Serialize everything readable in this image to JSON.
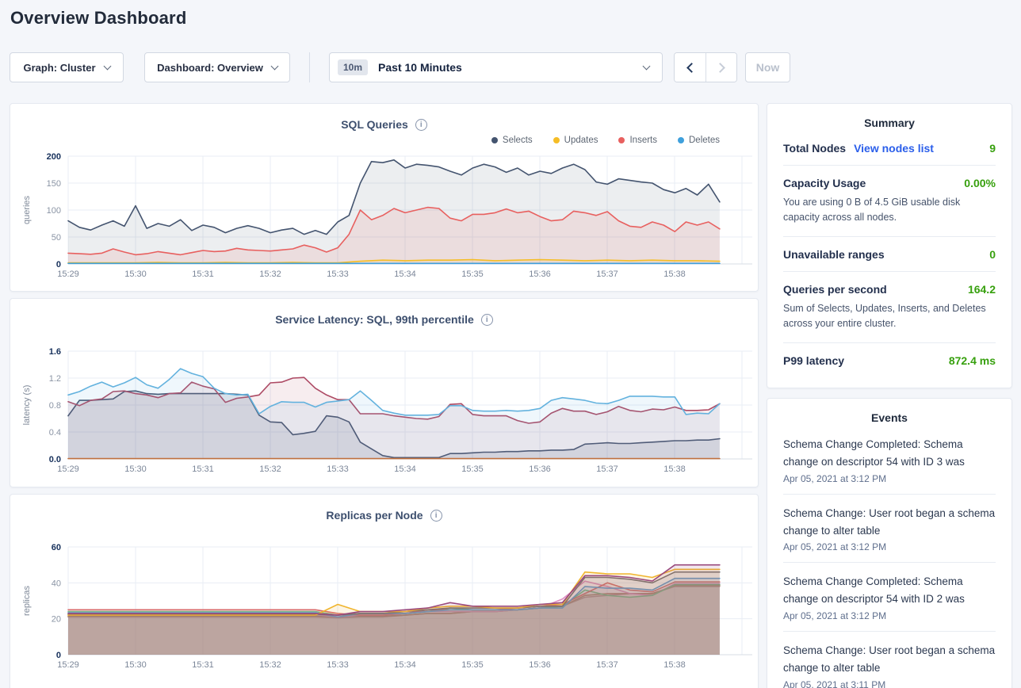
{
  "page": {
    "title": "Overview Dashboard"
  },
  "toolbar": {
    "graph_dropdown": "Graph: Cluster",
    "dashboard_dropdown": "Dashboard: Overview",
    "time_badge": "10m",
    "time_label": "Past 10 Minutes",
    "now_label": "Now"
  },
  "icons": {
    "info_glyph": "i"
  },
  "summary": {
    "title": "Summary",
    "total_nodes_label": "Total Nodes",
    "total_nodes_link": "View nodes list",
    "total_nodes_value": "9",
    "capacity_label": "Capacity Usage",
    "capacity_value": "0.00%",
    "capacity_sub": "You are using 0 B of 4.5 GiB usable disk capacity across all nodes.",
    "unavailable_label": "Unavailable ranges",
    "unavailable_value": "0",
    "qps_label": "Queries per second",
    "qps_value": "164.2",
    "qps_sub": "Sum of Selects, Updates, Inserts, and Deletes across your entire cluster.",
    "p99_label": "P99 latency",
    "p99_value": "872.4 ms",
    "value_color": "#37a00e",
    "link_color": "#2a5eea"
  },
  "events": {
    "title": "Events",
    "items": [
      {
        "text": "Schema Change Completed: Schema change on descriptor 54 with ID 3 was",
        "time": "Apr 05, 2021 at 3:12 PM"
      },
      {
        "text": "Schema Change: User root began a schema change to alter table",
        "time": "Apr 05, 2021 at 3:12 PM"
      },
      {
        "text": "Schema Change Completed: Schema change on descriptor 54 with ID 2 was",
        "time": "Apr 05, 2021 at 3:12 PM"
      },
      {
        "text": "Schema Change: User root began a schema change to alter table",
        "time": "Apr 05, 2021 at 3:11 PM"
      }
    ]
  },
  "chart_data": [
    {
      "type": "area",
      "title": "SQL Queries",
      "ylabel": "queries",
      "ylim": [
        0,
        200
      ],
      "yticks": [
        0,
        50,
        100,
        150,
        200
      ],
      "ytick_labels": [
        "0",
        "50",
        "100",
        "150",
        "200"
      ],
      "x_tick_labels": [
        "15:29",
        "15:30",
        "15:31",
        "15:32",
        "15:33",
        "15:34",
        "15:35",
        "15:36",
        "15:37",
        "15:38"
      ],
      "x_span_minutes": 10,
      "x_data_end": 9.67,
      "grid": true,
      "legend_position": "top-right",
      "legend": [
        {
          "label": "Selects",
          "color": "#44546f"
        },
        {
          "label": "Updates",
          "color": "#f5bd26"
        },
        {
          "label": "Inserts",
          "color": "#e8605f"
        },
        {
          "label": "Deletes",
          "color": "#3fa0dc"
        }
      ],
      "series": [
        {
          "name": "Selects",
          "color": "#44546f",
          "fill_opacity": 0.1,
          "values": [
            80,
            68,
            63,
            72,
            80,
            70,
            108,
            66,
            75,
            70,
            82,
            62,
            72,
            68,
            58,
            66,
            71,
            66,
            58,
            63,
            66,
            55,
            62,
            55,
            78,
            90,
            150,
            190,
            188,
            193,
            178,
            185,
            183,
            180,
            172,
            165,
            178,
            185,
            180,
            170,
            178,
            165,
            172,
            168,
            178,
            185,
            175,
            152,
            148,
            158,
            155,
            152,
            150,
            138,
            132,
            140,
            128,
            148,
            115
          ]
        },
        {
          "name": "Inserts",
          "color": "#e8605f",
          "fill_opacity": 0.12,
          "values": [
            20,
            19,
            18,
            20,
            28,
            22,
            17,
            19,
            23,
            20,
            17,
            21,
            25,
            23,
            24,
            29,
            26,
            25,
            24,
            26,
            28,
            35,
            30,
            22,
            30,
            55,
            100,
            82,
            90,
            103,
            95,
            100,
            105,
            103,
            85,
            80,
            92,
            92,
            95,
            102,
            95,
            98,
            88,
            80,
            82,
            98,
            95,
            90,
            97,
            80,
            70,
            68,
            78,
            72,
            60,
            78,
            72,
            78,
            65
          ]
        },
        {
          "name": "Updates",
          "color": "#f5bd26",
          "fill_opacity": 0.1,
          "values": [
            2,
            2,
            2,
            2,
            3,
            2,
            2,
            3,
            2,
            2,
            3,
            2,
            2,
            5,
            7,
            6,
            7,
            7,
            8,
            6,
            7,
            8,
            7,
            6,
            7,
            6,
            7,
            6,
            6,
            5
          ]
        },
        {
          "name": "Deletes",
          "color": "#3fa0dc",
          "fill_opacity": 0.1,
          "values": [
            1,
            1,
            1,
            1,
            1,
            1,
            1,
            1,
            1,
            1
          ]
        }
      ]
    },
    {
      "type": "area",
      "title": "Service Latency: SQL, 99th percentile",
      "ylabel": "latency (s)",
      "ylim": [
        0,
        1.6
      ],
      "yticks": [
        0,
        0.4,
        0.8,
        1.2,
        1.6
      ],
      "ytick_labels": [
        "0.0",
        "0.4",
        "0.8",
        "1.2",
        "1.6"
      ],
      "x_tick_labels": [
        "15:29",
        "15:30",
        "15:31",
        "15:32",
        "15:33",
        "15:34",
        "15:35",
        "15:36",
        "15:37",
        "15:38"
      ],
      "x_span_minutes": 10,
      "x_data_end": 9.67,
      "grid": true,
      "legend": null,
      "series": [
        {
          "name": "series-navy",
          "color": "#44546f",
          "fill_opacity": 0.14,
          "values": [
            0.64,
            0.87,
            0.87,
            0.88,
            0.89,
            1.0,
            1.01,
            0.97,
            0.96,
            0.97,
            0.97,
            0.97,
            0.97,
            0.97,
            0.97,
            0.96,
            0.95,
            0.65,
            0.55,
            0.54,
            0.36,
            0.38,
            0.41,
            0.64,
            0.62,
            0.55,
            0.25,
            0.15,
            0.05,
            0.02,
            0.02,
            0.02,
            0.02,
            0.02,
            0.08,
            0.08,
            0.09,
            0.1,
            0.1,
            0.11,
            0.11,
            0.12,
            0.12,
            0.13,
            0.13,
            0.14,
            0.22,
            0.23,
            0.24,
            0.23,
            0.23,
            0.24,
            0.25,
            0.26,
            0.27,
            0.27,
            0.28,
            0.28,
            0.3
          ]
        },
        {
          "name": "series-maroon",
          "color": "#ad4a64",
          "fill_opacity": 0.1,
          "values": [
            0.85,
            0.79,
            0.87,
            0.89,
            1.0,
            1.01,
            0.97,
            0.95,
            0.91,
            0.97,
            0.98,
            1.14,
            1.08,
            1.04,
            0.84,
            0.9,
            0.92,
            0.95,
            1.13,
            1.14,
            1.2,
            1.21,
            1.05,
            0.95,
            0.88,
            0.88,
            0.67,
            0.67,
            0.67,
            0.64,
            0.62,
            0.6,
            0.59,
            0.63,
            0.81,
            0.82,
            0.66,
            0.64,
            0.64,
            0.64,
            0.57,
            0.53,
            0.55,
            0.68,
            0.75,
            0.71,
            0.71,
            0.66,
            0.7,
            0.78,
            0.72,
            0.7,
            0.74,
            0.73,
            0.77,
            0.72,
            0.72,
            0.73,
            0.82
          ]
        },
        {
          "name": "series-blue",
          "color": "#63b2de",
          "fill_opacity": 0.1,
          "values": [
            0.95,
            1.0,
            1.08,
            1.14,
            1.07,
            1.13,
            1.21,
            1.1,
            1.05,
            1.18,
            1.34,
            1.27,
            1.22,
            1.05,
            0.97,
            0.95,
            0.96,
            0.67,
            0.78,
            0.85,
            0.84,
            0.84,
            0.77,
            0.84,
            0.86,
            0.88,
            1.01,
            0.87,
            0.72,
            0.68,
            0.65,
            0.65,
            0.65,
            0.66,
            0.79,
            0.79,
            0.72,
            0.71,
            0.71,
            0.72,
            0.71,
            0.72,
            0.75,
            0.87,
            0.91,
            0.89,
            0.87,
            0.83,
            0.82,
            0.87,
            0.93,
            0.93,
            0.93,
            0.92,
            0.92,
            0.66,
            0.68,
            0.67,
            0.82
          ]
        },
        {
          "name": "series-orange-baseline",
          "color": "#c0703f",
          "fill_opacity": 0,
          "values": [
            0.005,
            0.005
          ]
        }
      ]
    },
    {
      "type": "area",
      "title": "Replicas per Node",
      "ylabel": "replicas",
      "ylim": [
        0,
        60
      ],
      "yticks": [
        0,
        20,
        40,
        60
      ],
      "ytick_labels": [
        "0",
        "20",
        "40",
        "60"
      ],
      "x_tick_labels": [
        "15:29",
        "15:30",
        "15:31",
        "15:32",
        "15:33",
        "15:34",
        "15:35",
        "15:36",
        "15:37",
        "15:38"
      ],
      "x_span_minutes": 10,
      "x_data_end": 9.67,
      "grid": true,
      "legend": null,
      "series": [
        {
          "name": "series-1",
          "color": "#b58f93",
          "fill_opacity": 0.13,
          "values": [
            21,
            21,
            21,
            21,
            21,
            21,
            21,
            21,
            21,
            21,
            21,
            21,
            20.5,
            21,
            21,
            22,
            23,
            23,
            24,
            24,
            25,
            26,
            27,
            32,
            33,
            34,
            34,
            38,
            38,
            38
          ]
        },
        {
          "name": "series-2",
          "color": "#a87a60",
          "fill_opacity": 0.13,
          "values": [
            21.5,
            21.5,
            21.5,
            21.5,
            21.5,
            21.5,
            21.5,
            21.5,
            21.5,
            21.5,
            21.5,
            21.5,
            21,
            21.5,
            21.5,
            22,
            23,
            23,
            24,
            24,
            25,
            26,
            27,
            33,
            34,
            34,
            34,
            38.5,
            38.5,
            38.5
          ]
        },
        {
          "name": "series-3",
          "color": "#df8fc2",
          "fill_opacity": 0.13,
          "values": [
            22.3,
            22.3,
            22.3,
            22.3,
            22.3,
            22.3,
            22.3,
            22.3,
            22.3,
            22.3,
            22.3,
            22.3,
            21,
            22,
            22,
            23,
            24,
            24,
            24,
            24,
            25,
            26,
            31,
            41,
            38,
            34,
            33,
            39.5,
            39.5,
            39.5
          ]
        },
        {
          "name": "series-4",
          "color": "#6dbb85",
          "fill_opacity": 0.13,
          "values": [
            24,
            24,
            24,
            24,
            24,
            24,
            24,
            24,
            24,
            24,
            24,
            24,
            22,
            23,
            23,
            23,
            24,
            26,
            25,
            25,
            25,
            26,
            27,
            36,
            33,
            32,
            33,
            39,
            39,
            39
          ]
        },
        {
          "name": "series-5",
          "color": "#d96a6a",
          "fill_opacity": 0.13,
          "values": [
            25,
            25,
            25,
            25,
            25,
            25,
            25,
            25,
            25,
            25,
            25,
            25,
            23,
            22,
            22,
            23,
            25,
            25,
            25,
            25,
            26,
            27,
            28,
            34,
            40,
            36,
            35,
            40.5,
            40.5,
            40.5
          ]
        },
        {
          "name": "series-6",
          "color": "#5d9bd3",
          "fill_opacity": 0.13,
          "values": [
            23.3,
            23.3,
            23.3,
            23.3,
            23.3,
            23.3,
            23.3,
            23.3,
            23.3,
            23.3,
            23.3,
            23.3,
            21,
            23,
            23,
            23,
            24,
            25,
            25,
            25,
            25,
            26,
            26,
            38,
            37,
            37,
            36,
            42.5,
            42.5,
            42.5
          ]
        },
        {
          "name": "series-7",
          "color": "#6e6e73",
          "fill_opacity": 0.13,
          "values": [
            22.5,
            22.5,
            22.5,
            22.5,
            22.5,
            22.5,
            22.5,
            22.5,
            22.5,
            22.5,
            22.5,
            22.5,
            22,
            23,
            23,
            24,
            25,
            26,
            26,
            26,
            26,
            27,
            27,
            43,
            43,
            42,
            40,
            46,
            46,
            46
          ]
        },
        {
          "name": "series-8",
          "color": "#f0b52e",
          "fill_opacity": 0.13,
          "values": [
            22,
            22,
            22,
            22,
            22,
            22,
            22,
            22,
            22,
            22,
            22,
            22,
            28,
            24,
            24,
            24,
            26,
            27,
            27,
            26,
            26,
            28,
            28,
            46,
            45,
            45,
            43,
            47.5,
            47.5,
            47.5
          ]
        },
        {
          "name": "series-9",
          "color": "#9a4a7d",
          "fill_opacity": 0.13,
          "values": [
            23,
            23,
            23,
            23,
            23,
            23,
            23,
            23,
            23,
            23,
            23,
            23,
            22,
            24,
            24,
            25,
            26,
            29,
            27,
            27,
            27,
            28,
            29,
            44,
            44,
            43,
            41,
            50,
            50,
            50
          ]
        }
      ]
    }
  ]
}
